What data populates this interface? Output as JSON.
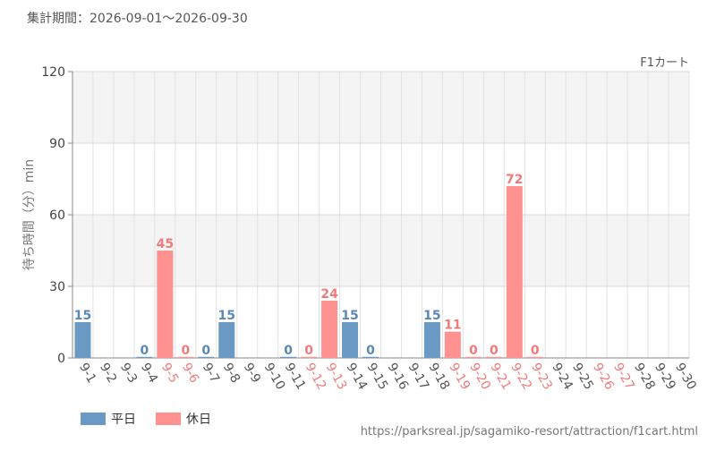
{
  "header": {
    "period_label": "集計期間：2026-09-01～2026-09-30"
  },
  "footer": {
    "source_url": "https://parksreal.jp/sagamiko-resort/attraction/f1cart.html"
  },
  "colors": {
    "weekday": "#6a9ac4",
    "holiday": "#ff9191",
    "holiday_tick": "#f07b7b",
    "weekday_tick": "#555555",
    "weekday_label": "#5b89b3",
    "holiday_label": "#f07b7b",
    "band": "#f4f4f4",
    "grid": "#e2e2e2"
  },
  "chart_data": {
    "type": "bar",
    "title": "F1カート",
    "xlabel": "",
    "ylabel": "待ち時間（分）min",
    "ylim": [
      0,
      120
    ],
    "yticks": [
      0,
      30,
      60,
      90,
      120
    ],
    "grid": true,
    "legend_position": "bottom-left",
    "legend": [
      {
        "key": "weekday",
        "label": "平日"
      },
      {
        "key": "holiday",
        "label": "休日"
      }
    ],
    "categories": [
      "9-1",
      "9-2",
      "9-3",
      "9-4",
      "9-5",
      "9-6",
      "9-7",
      "9-8",
      "9-9",
      "9-10",
      "9-11",
      "9-12",
      "9-13",
      "9-14",
      "9-15",
      "9-16",
      "9-17",
      "9-18",
      "9-19",
      "9-20",
      "9-21",
      "9-22",
      "9-23",
      "9-24",
      "9-25",
      "9-26",
      "9-27",
      "9-28",
      "9-29",
      "9-30"
    ],
    "day_type": [
      "weekday",
      "weekday",
      "weekday",
      "weekday",
      "holiday",
      "holiday",
      "weekday",
      "weekday",
      "weekday",
      "weekday",
      "weekday",
      "holiday",
      "holiday",
      "weekday",
      "weekday",
      "weekday",
      "weekday",
      "weekday",
      "holiday",
      "holiday",
      "holiday",
      "holiday",
      "holiday",
      "weekday",
      "weekday",
      "holiday",
      "holiday",
      "weekday",
      "weekday",
      "weekday"
    ],
    "values": [
      15,
      null,
      null,
      0,
      45,
      0,
      0,
      15,
      null,
      null,
      0,
      0,
      24,
      15,
      0,
      null,
      null,
      15,
      11,
      0,
      0,
      72,
      0,
      null,
      null,
      null,
      null,
      null,
      null,
      null
    ]
  }
}
